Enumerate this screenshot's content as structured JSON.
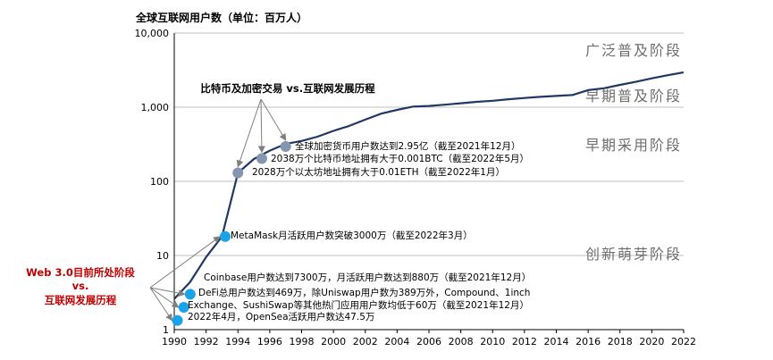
{
  "chart_data": {
    "type": "line",
    "title": "全球互联网用户数（单位：百万人）",
    "xlabel": "",
    "ylabel": "",
    "y_scale": "log",
    "ylim": [
      1,
      10000
    ],
    "xlim": [
      1990,
      2022
    ],
    "grid": "horizontal",
    "y_ticks": [
      "1",
      "10",
      "100",
      "1,000",
      "10,000"
    ],
    "x_ticks": [
      "1990",
      "1992",
      "1994",
      "1996",
      "1998",
      "2000",
      "2002",
      "2004",
      "2006",
      "2008",
      "2010",
      "2012",
      "2014",
      "2016",
      "2018",
      "2020",
      "2022"
    ],
    "series": [
      {
        "x": [
          1990,
          1991,
          1992,
          1993,
          1994,
          1995,
          1996,
          1997,
          1998,
          1999,
          2000,
          2001,
          2002,
          2003,
          2004,
          2005,
          2006,
          2007,
          2008,
          2009,
          2010,
          2011,
          2012,
          2013,
          2014,
          2015,
          2016,
          2017,
          2018,
          2019,
          2020,
          2021,
          2022
        ],
        "values": [
          2.6,
          4.4,
          9.5,
          18,
          130,
          200,
          260,
          320,
          350,
          400,
          480,
          560,
          680,
          820,
          920,
          1020,
          1040,
          1080,
          1130,
          1180,
          1220,
          1280,
          1330,
          1380,
          1420,
          1460,
          1700,
          1800,
          2000,
          2200,
          2450,
          2700,
          2950
        ]
      }
    ],
    "stage_labels": [
      "广泛普及阶段",
      "早期普及阶段",
      "早期采用阶段",
      "创新萌芽阶段"
    ],
    "group_label": "比特币及加密交易 vs.互联网发展历程",
    "web3_label": [
      "Web 3.0目前所处阶段",
      "vs.",
      "互联网发展历程"
    ],
    "annotations": [
      {
        "x": 1997.0,
        "y": 295,
        "text": "全球加密货币用户数达到2.95亿（截至2021年12月）"
      },
      {
        "x": 1995.5,
        "y": 203,
        "text": "2038万个比特币地址拥有大于0.001BTC（截至2022年5月）"
      },
      {
        "x": 1994.0,
        "y": 130,
        "text": "2028万个以太坊地址拥有大于0.01ETH（截至2022年1月）"
      },
      {
        "x": 1993.2,
        "y": 18,
        "text": "MetaMask月活跃用户数突破3000万（截至2022年3月）"
      },
      {
        "x": 1991.0,
        "y": 3.0,
        "text": "Coinbase用户数达到7300万，月活跃用户数达到880万（截至2021年12月）"
      },
      {
        "x": 1990.6,
        "y": 2.0,
        "text": "DeFi总用户数达到469万，除Uniswap用户数为389万外，Compound、1inch"
      },
      {
        "x": null,
        "y": null,
        "text": "Exchange、SushiSwap等其他热门应用用户数均低于60万（截至2021年12月）"
      },
      {
        "x": 1990.2,
        "y": 1.33,
        "text": "2022年4月，OpenSea活跃用户数达47.5万"
      }
    ],
    "colors": {
      "line": "#1f3864",
      "blue_marker": "#1aa3e8",
      "gray_marker": "#8496b0",
      "stage_text": "#6e6e6e",
      "web3_text": "#c00000",
      "grid": "#bfbfbf"
    }
  }
}
